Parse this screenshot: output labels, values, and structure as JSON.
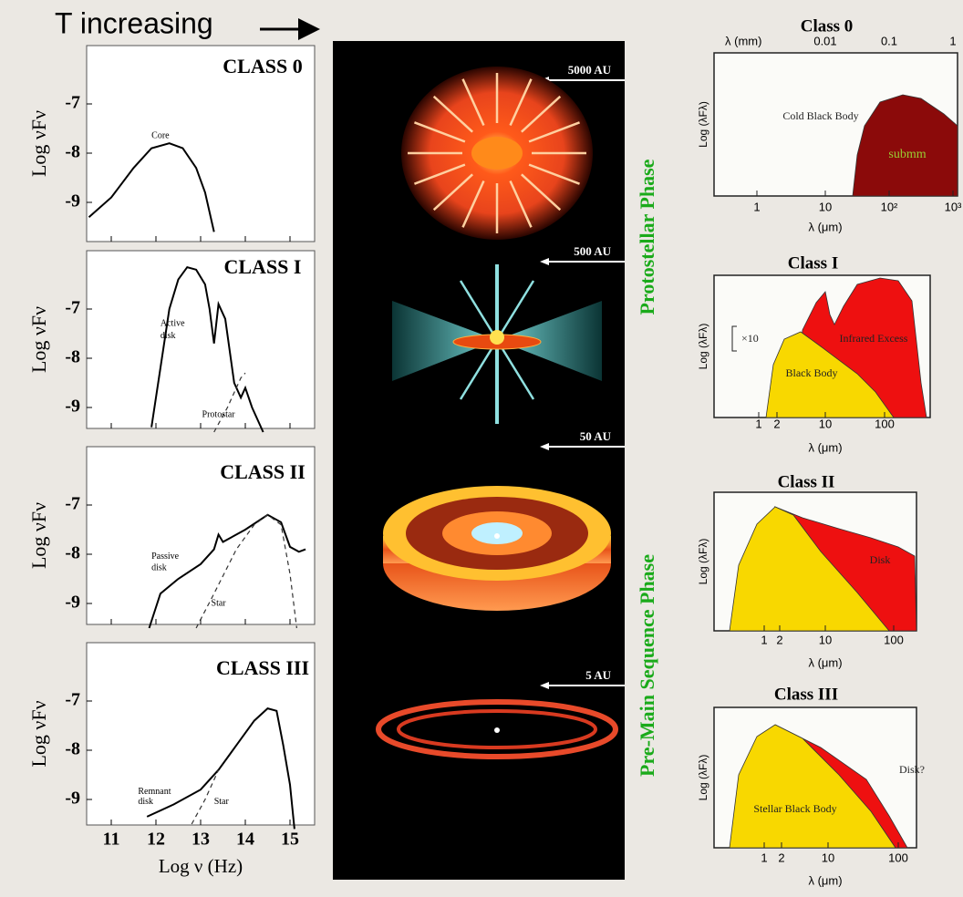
{
  "header": {
    "title": "T increasing"
  },
  "left": {
    "panels": [
      {
        "label": "CLASS 0",
        "notes": [
          "Core"
        ]
      },
      {
        "label": "CLASS I",
        "notes": [
          "Active",
          "disk",
          "Protostar"
        ]
      },
      {
        "label": "CLASS II",
        "notes": [
          "Passive",
          "disk",
          "Star"
        ]
      },
      {
        "label": "CLASS III",
        "notes": [
          "Remnant",
          "disk",
          "Star"
        ]
      }
    ],
    "ylabel": "Log νFν",
    "yticks": [
      "-7",
      "-8",
      "-9"
    ],
    "xticks": [
      "11",
      "12",
      "13",
      "14",
      "15"
    ],
    "xlabel": "Log  ν (Hz)"
  },
  "middle": {
    "scales": [
      "5000 AU",
      "500 AU",
      "50 AU",
      "5 AU"
    ],
    "phases": [
      "Protostellar Phase",
      "Pre-Main Sequence Phase"
    ]
  },
  "right": {
    "ylabel": "Log (λFλ)",
    "xlabel": "λ (μm)",
    "panels": [
      {
        "title": "Class 0",
        "top_label": "λ (mm)",
        "top_ticks": [
          "0.01",
          "0.1",
          "1"
        ],
        "xticks": [
          "1",
          "10",
          "10²",
          "10³"
        ],
        "notes": [
          "Cold Black Body",
          "submm"
        ]
      },
      {
        "title": "Class I",
        "xticks": [
          "1",
          "2",
          "10",
          "100"
        ],
        "notes": [
          "×10",
          "Infrared Excess",
          "Black Body"
        ]
      },
      {
        "title": "Class II",
        "xticks": [
          "1",
          "2",
          "10",
          "100"
        ],
        "notes": [
          "Disk"
        ]
      },
      {
        "title": "Class III",
        "xticks": [
          "1",
          "2",
          "10",
          "100"
        ],
        "notes": [
          "Disk?",
          "Stellar Black Body"
        ]
      }
    ]
  }
}
